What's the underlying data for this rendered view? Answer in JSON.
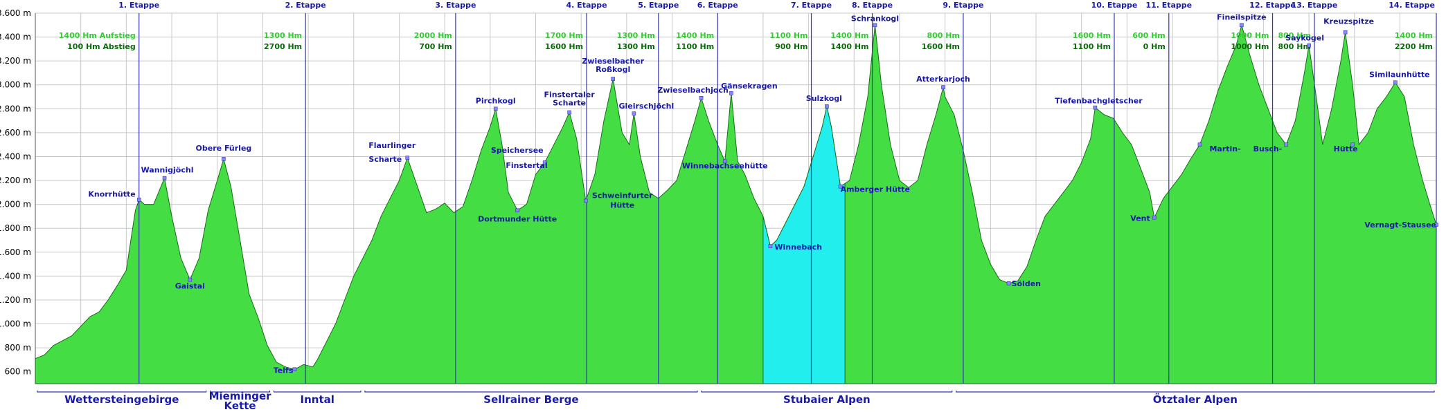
{
  "chart_data": {
    "type": "area",
    "title": "",
    "xlabel": "",
    "ylabel": "",
    "ylim": [
      500,
      3600
    ],
    "xlim": [
      0,
      100
    ],
    "grid": true,
    "y_ticks": [
      600,
      800,
      1000,
      1200,
      1400,
      1600,
      1800,
      2000,
      2200,
      2400,
      2600,
      2800,
      3000,
      3200,
      3400,
      3600
    ],
    "y_unit": "m",
    "profile": [
      [
        0.0,
        710
      ],
      [
        1.0,
        740
      ],
      [
        2.0,
        820
      ],
      [
        3.0,
        860
      ],
      [
        4.0,
        900
      ],
      [
        5.0,
        980
      ],
      [
        6.0,
        1060
      ],
      [
        7.0,
        1100
      ],
      [
        8.0,
        1200
      ],
      [
        9.0,
        1320
      ],
      [
        10.0,
        1450
      ],
      [
        10.5,
        1700
      ],
      [
        11.0,
        1950
      ],
      [
        11.4,
        2040
      ],
      [
        12.0,
        2000
      ],
      [
        13.0,
        2000
      ],
      [
        14.2,
        2220
      ],
      [
        15.0,
        1900
      ],
      [
        16.0,
        1550
      ],
      [
        17.0,
        1370
      ],
      [
        18.0,
        1550
      ],
      [
        19.0,
        1950
      ],
      [
        20.0,
        2200
      ],
      [
        20.7,
        2380
      ],
      [
        21.5,
        2150
      ],
      [
        22.5,
        1700
      ],
      [
        23.5,
        1250
      ],
      [
        24.5,
        1050
      ],
      [
        25.5,
        820
      ],
      [
        26.5,
        680
      ],
      [
        27.5,
        640
      ],
      [
        28.5,
        620
      ],
      [
        29.5,
        660
      ],
      [
        30.5,
        640
      ],
      [
        31.0,
        700
      ],
      [
        32.0,
        850
      ],
      [
        33.0,
        1000
      ],
      [
        34.0,
        1200
      ],
      [
        35.0,
        1400
      ],
      [
        36.0,
        1550
      ],
      [
        37.0,
        1700
      ],
      [
        38.0,
        1900
      ],
      [
        39.0,
        2050
      ],
      [
        40.0,
        2200
      ],
      [
        40.9,
        2390
      ],
      [
        42.0,
        2150
      ],
      [
        43.0,
        1930
      ],
      [
        44.0,
        1960
      ],
      [
        45.0,
        2010
      ],
      [
        46.0,
        1930
      ],
      [
        47.0,
        1980
      ],
      [
        48.0,
        2200
      ],
      [
        49.0,
        2450
      ],
      [
        50.0,
        2650
      ],
      [
        50.6,
        2800
      ],
      [
        51.3,
        2500
      ],
      [
        52.0,
        2100
      ],
      [
        53.0,
        1950
      ],
      [
        54.0,
        2000
      ],
      [
        55.0,
        2250
      ],
      [
        56.0,
        2350
      ],
      [
        57.0,
        2500
      ],
      [
        58.0,
        2650
      ],
      [
        58.7,
        2770
      ],
      [
        59.5,
        2550
      ],
      [
        60.5,
        2030
      ],
      [
        61.5,
        2250
      ],
      [
        62.5,
        2700
      ],
      [
        63.5,
        3050
      ],
      [
        64.5,
        2600
      ],
      [
        65.3,
        2500
      ],
      [
        65.8,
        2760
      ],
      [
        66.5,
        2400
      ],
      [
        67.5,
        2100
      ],
      [
        68.5,
        2050
      ],
      [
        69.5,
        2120
      ],
      [
        70.5,
        2200
      ],
      [
        71.5,
        2450
      ],
      [
        72.5,
        2700
      ],
      [
        73.2,
        2890
      ],
      [
        74.0,
        2700
      ],
      [
        75.0,
        2500
      ],
      [
        75.8,
        2360
      ],
      [
        76.5,
        2930
      ],
      [
        77.2,
        2360
      ],
      [
        78.0,
        2250
      ],
      [
        79.0,
        2050
      ],
      [
        80.0,
        1900
      ],
      [
        80.8,
        1650
      ],
      [
        81.5,
        1700
      ],
      [
        82.5,
        1850
      ],
      [
        83.5,
        2000
      ],
      [
        84.5,
        2150
      ],
      [
        85.5,
        2400
      ],
      [
        86.5,
        2650
      ],
      [
        87.0,
        2820
      ],
      [
        87.5,
        2650
      ],
      [
        88.5,
        2150
      ],
      [
        89.5,
        2200
      ],
      [
        90.5,
        2500
      ],
      [
        91.5,
        2900
      ],
      [
        92.3,
        3500
      ],
      [
        93.0,
        3000
      ],
      [
        94.0,
        2500
      ],
      [
        95.0,
        2200
      ],
      [
        96.0,
        2140
      ],
      [
        97.0,
        2200
      ],
      [
        98.0,
        2500
      ],
      [
        99.0,
        2750
      ],
      [
        99.8,
        2980
      ],
      [
        100.0,
        2900
      ]
    ],
    "profile2": [
      [
        100.0,
        2900
      ],
      [
        101.0,
        2750
      ],
      [
        102.0,
        2450
      ],
      [
        103.0,
        2100
      ],
      [
        104.0,
        1700
      ],
      [
        105.0,
        1500
      ],
      [
        106.0,
        1370
      ],
      [
        107.0,
        1340
      ],
      [
        108.0,
        1360
      ],
      [
        109.0,
        1480
      ],
      [
        110.0,
        1700
      ],
      [
        111.0,
        1900
      ],
      [
        112.0,
        2000
      ],
      [
        113.0,
        2100
      ],
      [
        114.0,
        2200
      ],
      [
        115.0,
        2350
      ],
      [
        116.0,
        2550
      ],
      [
        116.5,
        2810
      ],
      [
        117.5,
        2750
      ],
      [
        118.5,
        2720
      ],
      [
        119.5,
        2600
      ],
      [
        120.5,
        2500
      ],
      [
        121.5,
        2300
      ],
      [
        122.5,
        2100
      ],
      [
        123.0,
        1890
      ],
      [
        124.0,
        2050
      ],
      [
        125.0,
        2150
      ],
      [
        126.0,
        2250
      ],
      [
        127.0,
        2380
      ],
      [
        128.0,
        2500
      ],
      [
        129.0,
        2700
      ],
      [
        130.0,
        2950
      ],
      [
        131.0,
        3150
      ],
      [
        132.0,
        3330
      ],
      [
        132.6,
        3500
      ],
      [
        133.5,
        3250
      ],
      [
        134.5,
        3000
      ],
      [
        135.5,
        2800
      ],
      [
        136.5,
        2600
      ],
      [
        137.5,
        2500
      ],
      [
        138.5,
        2700
      ],
      [
        139.5,
        3100
      ],
      [
        140.0,
        3330
      ],
      [
        140.8,
        2900
      ],
      [
        141.5,
        2500
      ],
      [
        142.5,
        2800
      ],
      [
        143.5,
        3200
      ],
      [
        144.0,
        3440
      ],
      [
        144.8,
        3000
      ],
      [
        145.5,
        2500
      ],
      [
        146.5,
        2600
      ],
      [
        147.5,
        2800
      ],
      [
        148.5,
        2900
      ],
      [
        149.5,
        3020
      ],
      [
        150.5,
        2900
      ],
      [
        151.5,
        2500
      ],
      [
        152.5,
        2200
      ],
      [
        153.5,
        1950
      ],
      [
        154.0,
        1830
      ]
    ],
    "highlight_range": [
      80.0,
      89.0
    ],
    "stages": [
      {
        "label": "1. Etappe",
        "x": 11.4,
        "ascent": "1400 Hm Aufstieg",
        "descent": "100 Hm Abstieg"
      },
      {
        "label": "2. Etappe",
        "x": 29.7,
        "ascent": "1300 Hm",
        "descent": "2700 Hm"
      },
      {
        "label": "3. Etappe",
        "x": 46.2,
        "ascent": "2000 Hm",
        "descent": "700 Hm"
      },
      {
        "label": "4. Etappe",
        "x": 60.6,
        "ascent": "1700 Hm",
        "descent": "1600 Hm"
      },
      {
        "label": "5. Etappe",
        "x": 68.5,
        "ascent": "1300 Hm",
        "descent": "1300 Hm"
      },
      {
        "label": "6. Etappe",
        "x": 75.0,
        "ascent": "1400 Hm",
        "descent": "1100 Hm"
      },
      {
        "label": "7. Etappe",
        "x": 85.3,
        "ascent": "1100 Hm",
        "descent": "900 Hm"
      },
      {
        "label": "8. Etappe",
        "x": 92.0,
        "ascent": "1400 Hm",
        "descent": "1400 Hm"
      },
      {
        "label": "9. Etappe",
        "x": 102.0,
        "ascent": "800 Hm",
        "descent": "1600 Hm"
      },
      {
        "label": "10. Etappe",
        "x": 118.6,
        "ascent": "1600 Hm",
        "descent": "1100 Hm"
      },
      {
        "label": "11. Etappe",
        "x": 124.6,
        "ascent": "600 Hm",
        "descent": "0 Hm"
      },
      {
        "label": "12. Etappe",
        "x": 136.0,
        "ascent": "1000 Hm",
        "descent": "1000 Hm"
      },
      {
        "label": "13. Etappe",
        "x": 140.6,
        "ascent": "800 Hm",
        "descent": "800 Hm"
      },
      {
        "label": "14. Etappe",
        "x": 154.0,
        "ascent": "1400 Hm",
        "descent": "2200 Hm"
      }
    ],
    "places": [
      {
        "name": "Knorrhütte",
        "x": 11.4,
        "y": 2040
      },
      {
        "name": "Wannigjöchl",
        "x": 14.2,
        "y": 2220
      },
      {
        "name": "Gaistal",
        "x": 17.0,
        "y": 1370
      },
      {
        "name": "Obere Fürleg",
        "x": 20.7,
        "y": 2380
      },
      {
        "name": "Telfs",
        "x": 28.5,
        "y": 620
      },
      {
        "name": "Flaurlinger",
        "x": 40.9,
        "y": 2390
      },
      {
        "name": "Scharte",
        "x": 40.9,
        "y": 2390
      },
      {
        "name": "Pirchkogl",
        "x": 50.6,
        "y": 2800
      },
      {
        "name": "Dortmunder Hütte",
        "x": 53.0,
        "y": 1950
      },
      {
        "name": "Speichersee",
        "x": 56.0,
        "y": 2350
      },
      {
        "name": "Finstertal",
        "x": 56.0,
        "y": 2350
      },
      {
        "name": "Finstertaler",
        "x": 58.7,
        "y": 2770
      },
      {
        "name": "Scharte",
        "x": 58.7,
        "y": 2770
      },
      {
        "name": "Zwieselbacher",
        "x": 63.5,
        "y": 3050
      },
      {
        "name": "Roßkogl",
        "x": 63.5,
        "y": 3050
      },
      {
        "name": "Gleirschjöchl",
        "x": 65.8,
        "y": 2760
      },
      {
        "name": "Schweinfurter",
        "x": 60.5,
        "y": 2030
      },
      {
        "name": "Hütte",
        "x": 60.5,
        "y": 2030
      },
      {
        "name": "Zwieselbachjoch",
        "x": 73.2,
        "y": 2890
      },
      {
        "name": "Gänsekragen",
        "x": 76.5,
        "y": 2930
      },
      {
        "name": "Winnebachseehütte",
        "x": 75.8,
        "y": 2360
      },
      {
        "name": "Winnebach",
        "x": 80.8,
        "y": 1650
      },
      {
        "name": "Sulzkogl",
        "x": 87.0,
        "y": 2820
      },
      {
        "name": "Amberger Hütte",
        "x": 88.5,
        "y": 2150
      },
      {
        "name": "Schrankogl",
        "x": 92.3,
        "y": 3500
      },
      {
        "name": "Atterkarjoch",
        "x": 99.8,
        "y": 2980
      },
      {
        "name": "Sölden",
        "x": 107.0,
        "y": 1340
      },
      {
        "name": "Tiefenbachgletscher",
        "x": 116.5,
        "y": 2810
      },
      {
        "name": "Vent",
        "x": 123.0,
        "y": 1890
      },
      {
        "name": "Martin-",
        "x": 128.0,
        "y": 2500
      },
      {
        "name": "Fineilspitze",
        "x": 132.6,
        "y": 3500
      },
      {
        "name": "Busch-",
        "x": 137.5,
        "y": 2500
      },
      {
        "name": "Saykogel",
        "x": 140.0,
        "y": 3330
      },
      {
        "name": "Kreuzspitze",
        "x": 144.0,
        "y": 3440
      },
      {
        "name": "Hütte",
        "x": 144.8,
        "y": 2500
      },
      {
        "name": "Similaunhütte",
        "x": 149.5,
        "y": 3020
      },
      {
        "name": "Vernagt-Stausee",
        "x": 154.0,
        "y": 1830
      }
    ],
    "regions": [
      {
        "name": "Wettersteingebirge",
        "x0": 0.0,
        "x1": 19.0
      },
      {
        "name": "Mieminger",
        "name2": "Kette",
        "x0": 19.0,
        "x1": 26.0
      },
      {
        "name": "Inntal",
        "x0": 26.0,
        "x1": 36.0
      },
      {
        "name": "Sellrainer Berge",
        "x0": 36.0,
        "x1": 73.0
      },
      {
        "name": "Stubaier Alpen",
        "x0": 73.0,
        "x1": 101.0
      },
      {
        "name": "Ötztaler Alpen",
        "x0": 101.0,
        "x1": 154.0
      }
    ],
    "colors": {
      "area": "#44dd44",
      "highlight": "#22eeee",
      "stage_line": "#3333bb",
      "grid": "#c8c8c8"
    }
  }
}
